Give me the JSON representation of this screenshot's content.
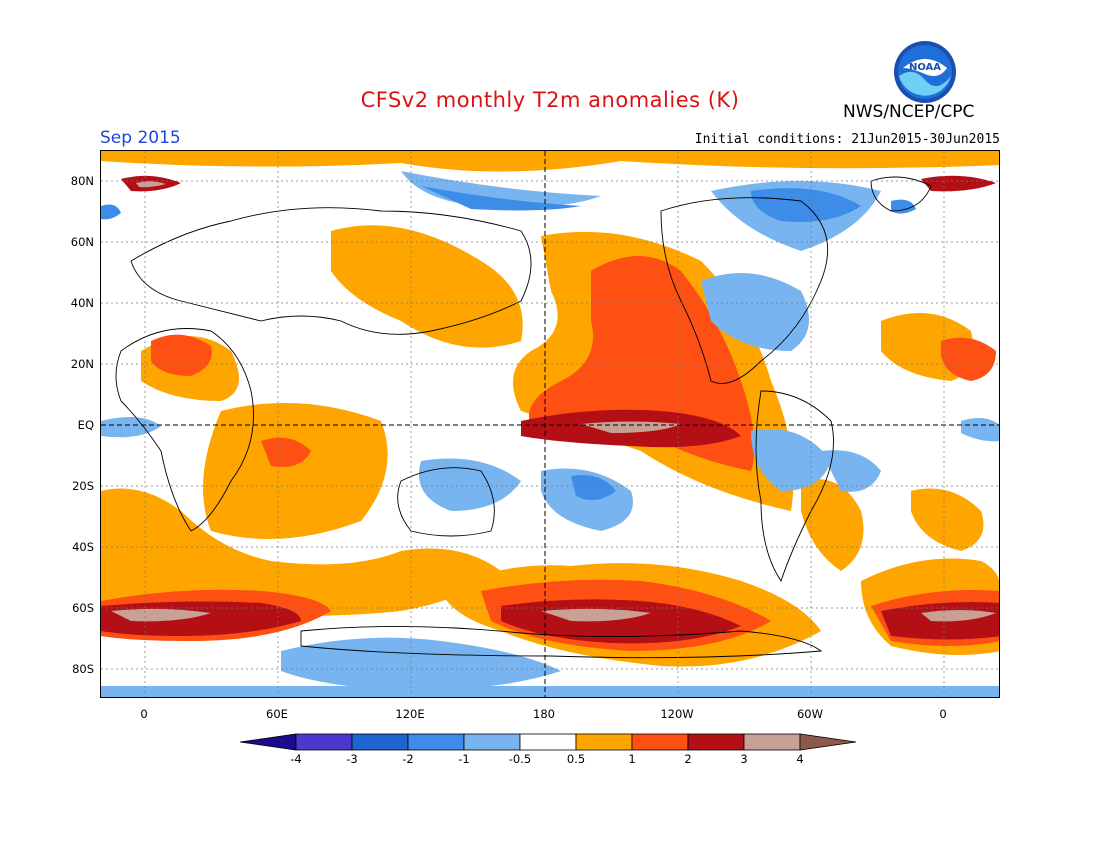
{
  "header": {
    "title": "CFSv2 monthly T2m anomalies (K)",
    "agency": "NWS/NCEP/CPC",
    "logo_text": "NOAA",
    "month": "Sep 2015",
    "initial_conditions": "Initial conditions: 21Jun2015-30Jun2015"
  },
  "axes": {
    "lat_labels": [
      "80N",
      "60N",
      "40N",
      "20N",
      "EQ",
      "20S",
      "40S",
      "60S",
      "80S"
    ],
    "lon_labels": [
      "0",
      "60E",
      "120E",
      "180",
      "120W",
      "60W",
      "0"
    ]
  },
  "colorbar": {
    "labels": [
      "-4",
      "-3",
      "-2",
      "-1",
      "-0.5",
      "0.5",
      "1",
      "2",
      "3",
      "4"
    ],
    "colors": [
      "#1a0c8c",
      "#4a3acc",
      "#1e64d2",
      "#3c8ce8",
      "#78b4f0",
      "#ffffff",
      "#ffa500",
      "#ff5014",
      "#b40f14",
      "#c8a096",
      "#8c5a4a"
    ]
  }
}
